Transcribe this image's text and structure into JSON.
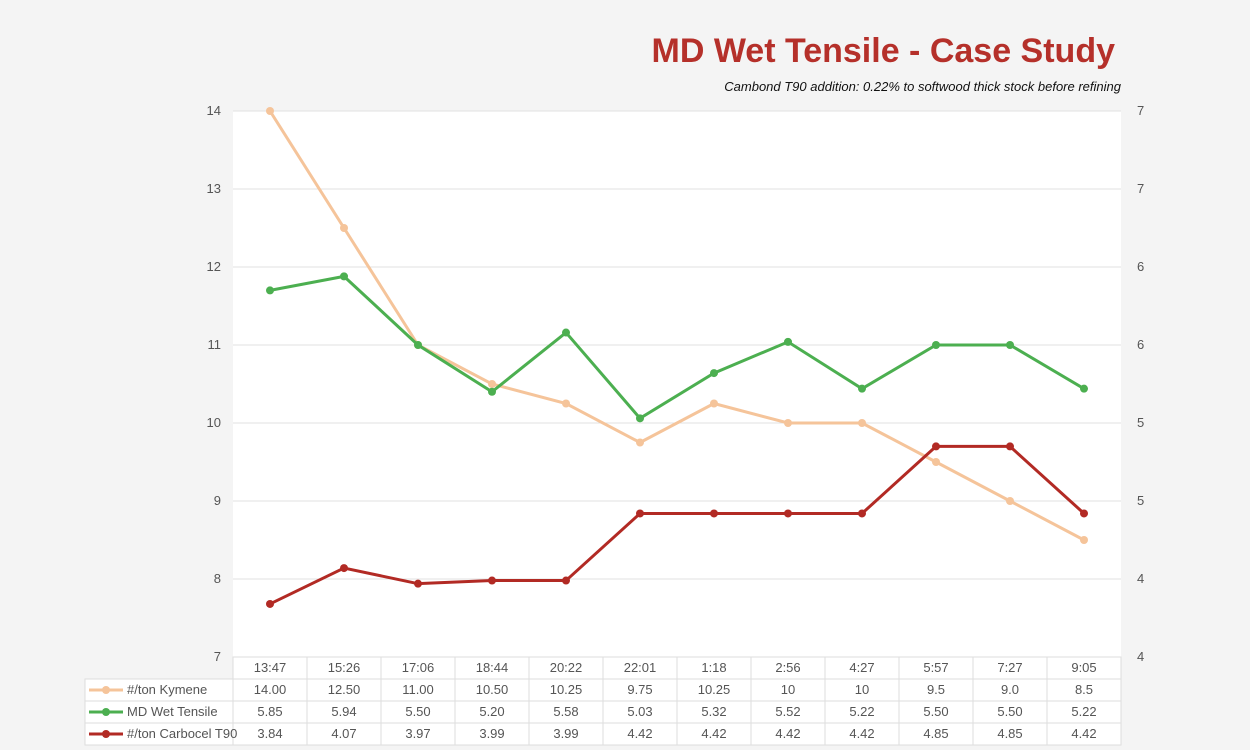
{
  "chart_data": {
    "type": "line",
    "title": "MD Wet Tensile - Case Study",
    "subtitle": "Cambond T90 addition: 0.22% to softwood thick stock before refining",
    "categories": [
      "13:47",
      "15:26",
      "17:06",
      "18:44",
      "20:22",
      "22:01",
      "1:18",
      "2:56",
      "4:27",
      "5:57",
      "7:27",
      "9:05"
    ],
    "left_axis": {
      "ylim": [
        7,
        14
      ],
      "ticks": [
        "7",
        "8",
        "9",
        "10",
        "11",
        "12",
        "13",
        "14"
      ]
    },
    "right_axis": {
      "ylim": [
        3.5,
        7
      ],
      "ticks": [
        "4",
        "4",
        "5",
        "5",
        "6",
        "6",
        "7",
        "7"
      ]
    },
    "grid": true,
    "legend": "data-table",
    "series": [
      {
        "name": "#/ton Kymene",
        "axis": "left",
        "color": "#f5c49a",
        "labels": [
          "14.00",
          "12.50",
          "11.00",
          "10.50",
          "10.25",
          "9.75",
          "10.25",
          "10",
          "10",
          "9.5",
          "9.0",
          "8.5"
        ],
        "values": [
          14,
          12.5,
          11,
          10.5,
          10.25,
          9.75,
          10.25,
          10,
          10,
          9.5,
          9,
          8.5
        ]
      },
      {
        "name": "MD Wet Tensile",
        "axis": "right",
        "color": "#4caf50",
        "labels": [
          "5.85",
          "5.94",
          "5.50",
          "5.20",
          "5.58",
          "5.03",
          "5.32",
          "5.52",
          "5.22",
          "5.50",
          "5.50",
          "5.22"
        ],
        "values": [
          5.85,
          5.94,
          5.5,
          5.2,
          5.58,
          5.03,
          5.32,
          5.52,
          5.22,
          5.5,
          5.5,
          5.22
        ]
      },
      {
        "name": "#/ton Carbocel T90",
        "axis": "right",
        "color": "#b22a24",
        "labels": [
          "3.84",
          "4.07",
          "3.97",
          "3.99",
          "3.99",
          "4.42",
          "4.42",
          "4.42",
          "4.42",
          "4.85",
          "4.85",
          "4.42"
        ],
        "values": [
          3.84,
          4.07,
          3.97,
          3.99,
          3.99,
          4.42,
          4.42,
          4.42,
          4.42,
          4.85,
          4.85,
          4.42
        ]
      }
    ]
  }
}
